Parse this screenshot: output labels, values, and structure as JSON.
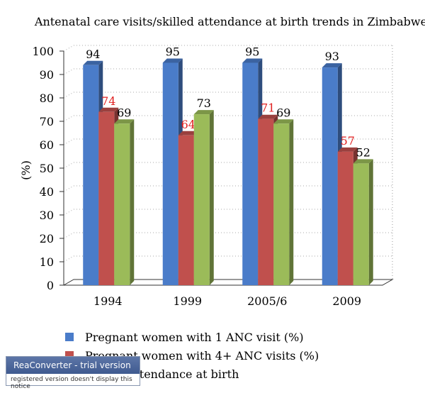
{
  "chart_data": {
    "type": "bar",
    "title": "Antenatal care visits/skilled attendance at birth trends in Zimbabwe",
    "ylabel": "(%)",
    "xlabel": "",
    "ylim": [
      0,
      100
    ],
    "yticks": [
      0,
      10,
      20,
      30,
      40,
      50,
      60,
      70,
      80,
      90,
      100
    ],
    "categories": [
      "1994",
      "1999",
      "2005/6",
      "2009"
    ],
    "series": [
      {
        "name": "Pregnant women with 1 ANC visit (%)",
        "values": [
          94,
          95,
          95,
          93
        ],
        "color": "#4a7cc9",
        "label_color": "#000000"
      },
      {
        "name": "Pregnant women with 4+ ANC visits (%)",
        "values": [
          74,
          64,
          71,
          57
        ],
        "color": "#c0504d",
        "label_color": "#e02020"
      },
      {
        "name": "Skilled attendance at birth",
        "values": [
          69,
          73,
          69,
          52
        ],
        "color": "#9bbb59",
        "label_color": "#000000"
      }
    ],
    "legend_position": "bottom",
    "grid": true,
    "three_d": true
  },
  "watermark": {
    "brand": "ReaConverter - trial version",
    "note": "registered version doesn't display this notice"
  }
}
